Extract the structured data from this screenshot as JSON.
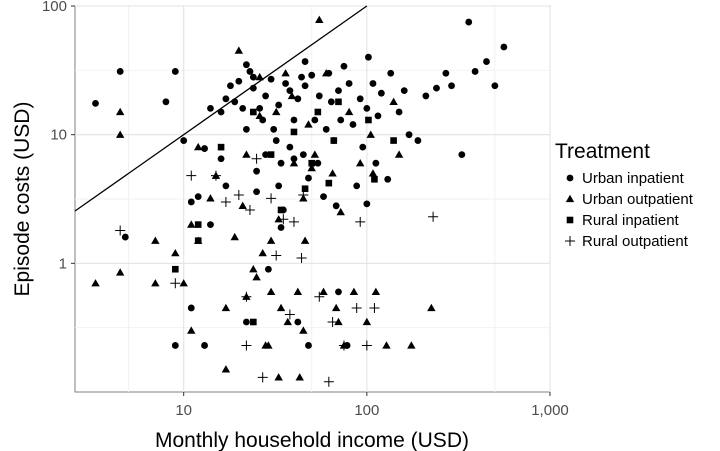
{
  "chart_data": {
    "type": "scatter",
    "xlabel": "Monthly household income (USD)",
    "ylabel": "Episode costs (USD)",
    "x_scale": "log10",
    "y_scale": "log10",
    "xlim": [
      2.55,
      1000
    ],
    "ylim": [
      0.1,
      100
    ],
    "x_ticks": [
      10,
      100,
      1000
    ],
    "x_tick_labels": [
      "10",
      "100",
      "1,000"
    ],
    "y_ticks": [
      1,
      10,
      100
    ],
    "y_tick_labels": [
      "1",
      "10",
      "100"
    ],
    "grid": true,
    "legend": {
      "title": "Treatment",
      "position": "right",
      "entries": [
        {
          "label": "Urban inpatient",
          "shape": "circle"
        },
        {
          "label": "Urban outpatient",
          "shape": "triangle"
        },
        {
          "label": "Rural inpatient",
          "shape": "square"
        },
        {
          "label": "Rural outpatient",
          "shape": "plus"
        }
      ]
    },
    "reference_line": {
      "from": [
        2.55,
        2.55
      ],
      "to": [
        100,
        100
      ]
    },
    "series": [
      {
        "name": "Urban inpatient",
        "shape": "circle",
        "points": [
          [
            3.3,
            17.5
          ],
          [
            4.5,
            31
          ],
          [
            4.8,
            1.6
          ],
          [
            8,
            18
          ],
          [
            9,
            31
          ],
          [
            9,
            0.23
          ],
          [
            10,
            9
          ],
          [
            11,
            3
          ],
          [
            11,
            0.45
          ],
          [
            12,
            3.3
          ],
          [
            13,
            7.8
          ],
          [
            13,
            0.23
          ],
          [
            14,
            2
          ],
          [
            14,
            16
          ],
          [
            16,
            15
          ],
          [
            16,
            6.5
          ],
          [
            17,
            19
          ],
          [
            17,
            4
          ],
          [
            18,
            24
          ],
          [
            19,
            18
          ],
          [
            20,
            26
          ],
          [
            21,
            16
          ],
          [
            22,
            35
          ],
          [
            22,
            11
          ],
          [
            22,
            0.35
          ],
          [
            23,
            31
          ],
          [
            24,
            28
          ],
          [
            24,
            23
          ],
          [
            25,
            5.2
          ],
          [
            25,
            3.6
          ],
          [
            26,
            16
          ],
          [
            27,
            13
          ],
          [
            28,
            20
          ],
          [
            28,
            7
          ],
          [
            29,
            0.9
          ],
          [
            30,
            27
          ],
          [
            31,
            11
          ],
          [
            32,
            9
          ],
          [
            33,
            4
          ],
          [
            33,
            17
          ],
          [
            34,
            6
          ],
          [
            34,
            1.9
          ],
          [
            35,
            2.6
          ],
          [
            36,
            25
          ],
          [
            38,
            22
          ],
          [
            38,
            8
          ],
          [
            40,
            13
          ],
          [
            40,
            6.5
          ],
          [
            42,
            19
          ],
          [
            42,
            0.35
          ],
          [
            44,
            28
          ],
          [
            45,
            7
          ],
          [
            46,
            37
          ],
          [
            46,
            24
          ],
          [
            48,
            4.6
          ],
          [
            48,
            0.23
          ],
          [
            50,
            29
          ],
          [
            52,
            13
          ],
          [
            54,
            6
          ],
          [
            55,
            20
          ],
          [
            58,
            3.3
          ],
          [
            60,
            11
          ],
          [
            62,
            30
          ],
          [
            64,
            18
          ],
          [
            66,
            9
          ],
          [
            68,
            2.8
          ],
          [
            70,
            0.6
          ],
          [
            70,
            22
          ],
          [
            72,
            13
          ],
          [
            75,
            34
          ],
          [
            78,
            0.23
          ],
          [
            80,
            25
          ],
          [
            84,
            12
          ],
          [
            88,
            4
          ],
          [
            92,
            19
          ],
          [
            95,
            8
          ],
          [
            100,
            2.9
          ],
          [
            100,
            16
          ],
          [
            102,
            40
          ],
          [
            108,
            25
          ],
          [
            112,
            6
          ],
          [
            115,
            14
          ],
          [
            120,
            21
          ],
          [
            130,
            4.5
          ],
          [
            135,
            30
          ],
          [
            150,
            15
          ],
          [
            160,
            22
          ],
          [
            170,
            10
          ],
          [
            190,
            9
          ],
          [
            210,
            20
          ],
          [
            240,
            23
          ],
          [
            270,
            30
          ],
          [
            290,
            24
          ],
          [
            330,
            7
          ],
          [
            360,
            75
          ],
          [
            390,
            31
          ],
          [
            450,
            37
          ],
          [
            500,
            24
          ],
          [
            560,
            48
          ]
        ]
      },
      {
        "name": "Urban outpatient",
        "shape": "triangle",
        "points": [
          [
            3.3,
            0.7
          ],
          [
            4.5,
            10
          ],
          [
            4.5,
            15
          ],
          [
            4.5,
            0.85
          ],
          [
            7,
            1.5
          ],
          [
            7,
            0.7
          ],
          [
            7,
            0.08
          ],
          [
            9,
            1.2
          ],
          [
            10,
            0.7
          ],
          [
            10,
            0.08
          ],
          [
            11,
            2
          ],
          [
            11,
            0.3
          ],
          [
            12,
            1.5
          ],
          [
            12,
            8
          ],
          [
            14,
            3.2
          ],
          [
            15,
            4.8
          ],
          [
            16,
            0.08
          ],
          [
            17,
            0.45
          ],
          [
            17,
            0.15
          ],
          [
            19,
            1.6
          ],
          [
            20,
            45
          ],
          [
            21,
            2.8
          ],
          [
            22,
            0.55
          ],
          [
            22,
            7
          ],
          [
            24,
            0.9
          ],
          [
            25,
            0.78
          ],
          [
            26,
            28
          ],
          [
            26,
            14
          ],
          [
            27,
            1.2
          ],
          [
            28,
            0.23
          ],
          [
            29,
            0.23
          ],
          [
            30,
            0.6
          ],
          [
            30,
            1.5
          ],
          [
            31,
            0.08
          ],
          [
            32,
            15
          ],
          [
            33,
            0.13
          ],
          [
            33,
            2.2
          ],
          [
            34,
            0.45
          ],
          [
            36,
            30
          ],
          [
            37,
            0.35
          ],
          [
            38,
            0.08
          ],
          [
            39,
            20
          ],
          [
            40,
            6
          ],
          [
            42,
            0.6
          ],
          [
            43,
            0.13
          ],
          [
            45,
            3.2
          ],
          [
            45,
            0.3
          ],
          [
            46,
            1.5
          ],
          [
            48,
            12
          ],
          [
            50,
            5.5
          ],
          [
            51,
            0.08
          ],
          [
            52,
            7
          ],
          [
            55,
            78
          ],
          [
            58,
            0.6
          ],
          [
            60,
            30
          ],
          [
            65,
            5
          ],
          [
            68,
            0.45
          ],
          [
            70,
            0.35
          ],
          [
            72,
            2.5
          ],
          [
            75,
            0.23
          ],
          [
            80,
            15
          ],
          [
            85,
            0.6
          ],
          [
            92,
            6
          ],
          [
            95,
            0.08
          ],
          [
            100,
            0.35
          ],
          [
            105,
            10
          ],
          [
            108,
            5
          ],
          [
            112,
            0.6
          ],
          [
            120,
            0.08
          ],
          [
            128,
            0.23
          ],
          [
            140,
            18
          ],
          [
            150,
            7
          ],
          [
            175,
            0.23
          ],
          [
            225,
            0.45
          ]
        ]
      },
      {
        "name": "Rural inpatient",
        "shape": "square",
        "points": [
          [
            9,
            0.9
          ],
          [
            12,
            1.5
          ],
          [
            12,
            2
          ],
          [
            16,
            8
          ],
          [
            24,
            15
          ],
          [
            24,
            0.35
          ],
          [
            30,
            7
          ],
          [
            34,
            2.6
          ],
          [
            36,
            0.08
          ],
          [
            40,
            10.5
          ],
          [
            46,
            3.8
          ],
          [
            50,
            6
          ],
          [
            54,
            15
          ],
          [
            62,
            4.2
          ],
          [
            66,
            9
          ],
          [
            70,
            18
          ],
          [
            88,
            0.08
          ],
          [
            102,
            13
          ],
          [
            110,
            4.5
          ],
          [
            140,
            9
          ]
        ]
      },
      {
        "name": "Rural outpatient",
        "shape": "plus",
        "points": [
          [
            4.5,
            1.8
          ],
          [
            9,
            0.7
          ],
          [
            11,
            4.8
          ],
          [
            15,
            4.8
          ],
          [
            17,
            3
          ],
          [
            20,
            3.4
          ],
          [
            22,
            0.55
          ],
          [
            22,
            0.23
          ],
          [
            23,
            2.6
          ],
          [
            25,
            6.5
          ],
          [
            27,
            0.13
          ],
          [
            30,
            3.2
          ],
          [
            32,
            1.15
          ],
          [
            33,
            0.08
          ],
          [
            35,
            2.2
          ],
          [
            38,
            0.4
          ],
          [
            40,
            2.1
          ],
          [
            44,
            1.1
          ],
          [
            45,
            3.4
          ],
          [
            55,
            0.55
          ],
          [
            62,
            0.12
          ],
          [
            65,
            0.35
          ],
          [
            68,
            0.08
          ],
          [
            75,
            0.23
          ],
          [
            88,
            0.45
          ],
          [
            92,
            2.1
          ],
          [
            100,
            0.23
          ],
          [
            102,
            0.08
          ],
          [
            110,
            0.45
          ],
          [
            230,
            2.3
          ]
        ]
      }
    ]
  }
}
